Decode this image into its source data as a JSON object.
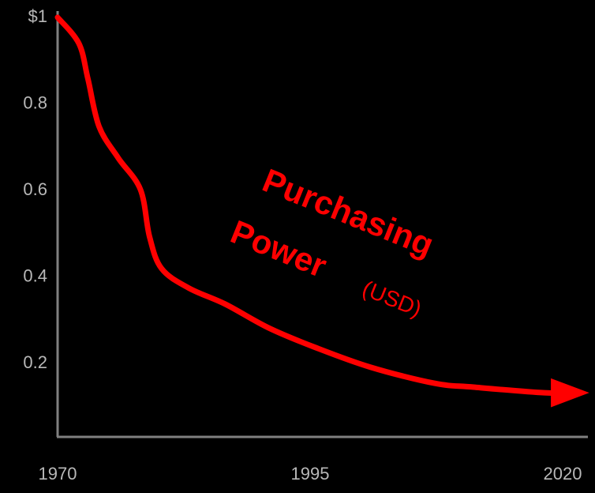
{
  "chart_data": {
    "type": "line",
    "x": [
      1970,
      1972.1,
      1973.0,
      1974.1,
      1976.0,
      1978.2,
      1979.1,
      1980.3,
      1983.0,
      1986.6,
      1990.9,
      1995.5,
      2001.0,
      2007.3,
      2011.2,
      2018.2,
      2021.7
    ],
    "series": [
      {
        "name": "Purchasing Power (USD)",
        "color": "#ff0000",
        "values": [
          1.0,
          0.94,
          0.858,
          0.748,
          0.675,
          0.602,
          0.493,
          0.419,
          0.374,
          0.337,
          0.282,
          0.237,
          0.191,
          0.154,
          0.145,
          0.132,
          0.132
        ]
      }
    ],
    "annotation": [
      "Purchasing",
      "Power",
      "(USD)"
    ],
    "xlim": [
      1970,
      2022.5
    ],
    "xticks": [
      1970,
      1995,
      2020
    ],
    "ylim": [
      0.03,
      1.0
    ],
    "yticks": [
      {
        "value": 1.0,
        "label": "$1"
      },
      0.8,
      0.6,
      0.4,
      0.2
    ],
    "grid": false
  }
}
